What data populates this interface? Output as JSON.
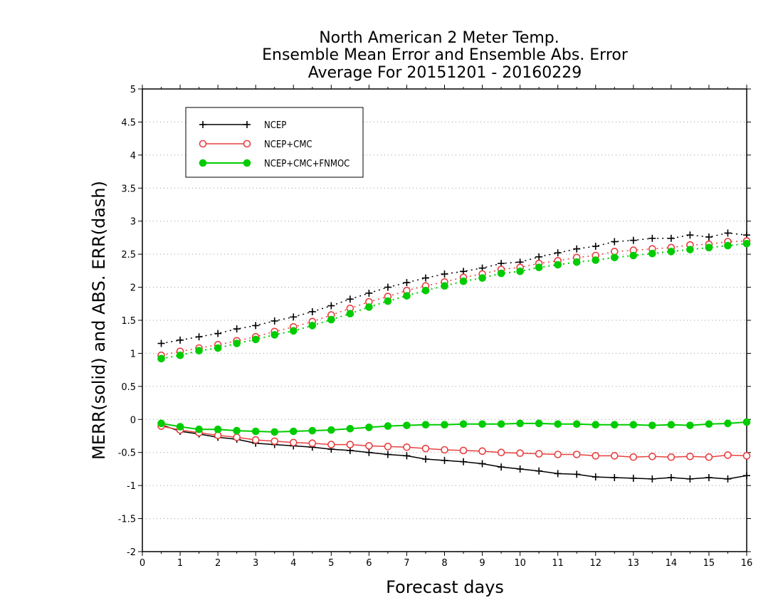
{
  "chart_data": {
    "type": "line",
    "title_lines": [
      "North American 2 Meter Temp.",
      "Ensemble Mean Error and Ensemble Abs. Error",
      "Average For 20151201 - 20160229"
    ],
    "xlabel": "Forecast days",
    "ylabel": "MERR(solid) and ABS. ERR(dash)",
    "xlim": [
      0,
      16
    ],
    "ylim": [
      -2,
      5
    ],
    "xticks": [
      0,
      1,
      2,
      3,
      4,
      5,
      6,
      7,
      8,
      9,
      10,
      11,
      12,
      13,
      14,
      15,
      16
    ],
    "yticks": [
      -2,
      -1.5,
      -1,
      -0.5,
      0,
      0.5,
      1,
      1.5,
      2,
      2.5,
      3,
      3.5,
      4,
      4.5,
      5
    ],
    "grid": "horizontal-dotted",
    "legend_position": "top-left",
    "x": [
      0.5,
      1,
      1.5,
      2,
      2.5,
      3,
      3.5,
      4,
      4.5,
      5,
      5.5,
      6,
      6.5,
      7,
      7.5,
      8,
      8.5,
      9,
      9.5,
      10,
      10.5,
      11,
      11.5,
      12,
      12.5,
      13,
      13.5,
      14,
      14.5,
      15,
      15.5,
      16
    ],
    "series": [
      {
        "name": "NCEP",
        "color": "#000000",
        "marker": "plus",
        "merr": [
          -0.08,
          -0.18,
          -0.22,
          -0.27,
          -0.3,
          -0.36,
          -0.38,
          -0.4,
          -0.42,
          -0.45,
          -0.47,
          -0.5,
          -0.53,
          -0.55,
          -0.6,
          -0.62,
          -0.64,
          -0.67,
          -0.72,
          -0.75,
          -0.78,
          -0.82,
          -0.83,
          -0.87,
          -0.88,
          -0.89,
          -0.9,
          -0.88,
          -0.9,
          -0.88,
          -0.9,
          -0.85
        ],
        "abserr": [
          1.15,
          1.2,
          1.25,
          1.3,
          1.37,
          1.42,
          1.49,
          1.55,
          1.63,
          1.72,
          1.82,
          1.91,
          2.0,
          2.07,
          2.14,
          2.2,
          2.24,
          2.29,
          2.36,
          2.38,
          2.46,
          2.52,
          2.58,
          2.62,
          2.69,
          2.71,
          2.74,
          2.74,
          2.79,
          2.76,
          2.82,
          2.79
        ]
      },
      {
        "name": "NCEP+CMC",
        "color": "#e84040",
        "marker": "circle-open",
        "merr": [
          -0.1,
          -0.16,
          -0.2,
          -0.24,
          -0.27,
          -0.31,
          -0.33,
          -0.35,
          -0.36,
          -0.38,
          -0.38,
          -0.4,
          -0.41,
          -0.42,
          -0.44,
          -0.46,
          -0.47,
          -0.48,
          -0.5,
          -0.51,
          -0.52,
          -0.53,
          -0.53,
          -0.55,
          -0.55,
          -0.57,
          -0.56,
          -0.57,
          -0.56,
          -0.57,
          -0.54,
          -0.55
        ],
        "abserr": [
          0.97,
          1.03,
          1.08,
          1.13,
          1.19,
          1.25,
          1.33,
          1.4,
          1.48,
          1.58,
          1.68,
          1.78,
          1.86,
          1.95,
          2.02,
          2.08,
          2.15,
          2.2,
          2.27,
          2.3,
          2.36,
          2.4,
          2.45,
          2.48,
          2.54,
          2.56,
          2.58,
          2.6,
          2.64,
          2.65,
          2.69,
          2.7
        ]
      },
      {
        "name": "NCEP+CMC+FNMOC",
        "color": "#00cc00",
        "marker": "circle-filled",
        "merr": [
          -0.06,
          -0.11,
          -0.15,
          -0.15,
          -0.17,
          -0.18,
          -0.19,
          -0.18,
          -0.17,
          -0.16,
          -0.14,
          -0.12,
          -0.1,
          -0.09,
          -0.08,
          -0.08,
          -0.07,
          -0.07,
          -0.07,
          -0.06,
          -0.06,
          -0.07,
          -0.07,
          -0.08,
          -0.08,
          -0.08,
          -0.09,
          -0.08,
          -0.09,
          -0.07,
          -0.06,
          -0.04
        ],
        "abserr": [
          0.92,
          0.97,
          1.04,
          1.08,
          1.15,
          1.21,
          1.28,
          1.34,
          1.42,
          1.51,
          1.6,
          1.7,
          1.79,
          1.87,
          1.95,
          2.02,
          2.09,
          2.14,
          2.21,
          2.24,
          2.3,
          2.34,
          2.38,
          2.41,
          2.45,
          2.48,
          2.51,
          2.54,
          2.57,
          2.6,
          2.63,
          2.66
        ]
      }
    ]
  }
}
